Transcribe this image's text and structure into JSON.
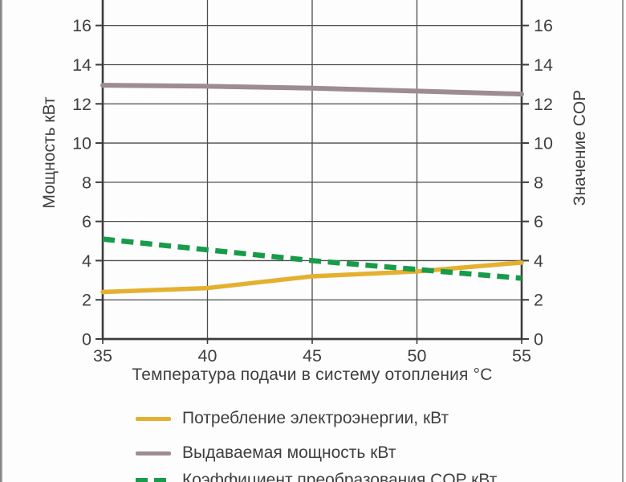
{
  "figure": {
    "kind": "heat-pump performance chart"
  },
  "chart_data": {
    "type": "line",
    "x": [
      35,
      40,
      45,
      50,
      55
    ],
    "xticks": [
      35,
      40,
      45,
      50,
      55
    ],
    "yticks": [
      0,
      2,
      4,
      6,
      8,
      10,
      12,
      14,
      16
    ],
    "xlim": [
      35,
      55
    ],
    "ylim": [
      0,
      17.3
    ],
    "grid": true,
    "xlabel": "Температура подачи в систему отопления °C",
    "ylabel_left": "Мощность кВт",
    "ylabel_right": "Значение COP",
    "legend_position": "bottom-left",
    "series": [
      {
        "name": "Потребление электроэнергии, кВт",
        "color": "#e4b02f",
        "style": "solid",
        "axis": "left",
        "values": [
          2.4,
          2.6,
          3.2,
          3.45,
          3.9
        ]
      },
      {
        "name": "Выдаваемая мощность кВт",
        "color": "#9d8c91",
        "style": "solid",
        "axis": "left",
        "values": [
          12.95,
          12.9,
          12.8,
          12.65,
          12.5
        ]
      },
      {
        "name": "Коэффициент преобразования COP кВт",
        "color": "#189b4a",
        "style": "dashed",
        "axis": "right",
        "values": [
          5.1,
          4.55,
          4.0,
          3.55,
          3.1
        ]
      }
    ],
    "colors": {
      "grid": "#4d4d4d",
      "spine": "#3c3c3c",
      "text": "#3f3f3f"
    }
  }
}
